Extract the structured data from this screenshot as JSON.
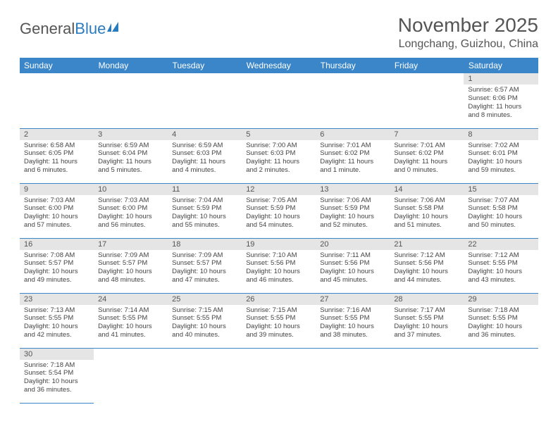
{
  "brand": {
    "part1": "General",
    "part2": "Blue"
  },
  "title": "November 2025",
  "location": "Longchang, Guizhou, China",
  "colors": {
    "header_bg": "#3a86c8",
    "header_text": "#ffffff",
    "daynum_bg": "#e5e5e5",
    "border": "#3a86c8",
    "text": "#444444",
    "title_text": "#555555"
  },
  "weekdays": [
    "Sunday",
    "Monday",
    "Tuesday",
    "Wednesday",
    "Thursday",
    "Friday",
    "Saturday"
  ],
  "leading_blanks": 6,
  "days": [
    {
      "n": 1,
      "sunrise": "6:57 AM",
      "sunset": "6:06 PM",
      "daylight": "11 hours and 8 minutes."
    },
    {
      "n": 2,
      "sunrise": "6:58 AM",
      "sunset": "6:05 PM",
      "daylight": "11 hours and 6 minutes."
    },
    {
      "n": 3,
      "sunrise": "6:59 AM",
      "sunset": "6:04 PM",
      "daylight": "11 hours and 5 minutes."
    },
    {
      "n": 4,
      "sunrise": "6:59 AM",
      "sunset": "6:03 PM",
      "daylight": "11 hours and 4 minutes."
    },
    {
      "n": 5,
      "sunrise": "7:00 AM",
      "sunset": "6:03 PM",
      "daylight": "11 hours and 2 minutes."
    },
    {
      "n": 6,
      "sunrise": "7:01 AM",
      "sunset": "6:02 PM",
      "daylight": "11 hours and 1 minute."
    },
    {
      "n": 7,
      "sunrise": "7:01 AM",
      "sunset": "6:02 PM",
      "daylight": "11 hours and 0 minutes."
    },
    {
      "n": 8,
      "sunrise": "7:02 AM",
      "sunset": "6:01 PM",
      "daylight": "10 hours and 59 minutes."
    },
    {
      "n": 9,
      "sunrise": "7:03 AM",
      "sunset": "6:00 PM",
      "daylight": "10 hours and 57 minutes."
    },
    {
      "n": 10,
      "sunrise": "7:03 AM",
      "sunset": "6:00 PM",
      "daylight": "10 hours and 56 minutes."
    },
    {
      "n": 11,
      "sunrise": "7:04 AM",
      "sunset": "5:59 PM",
      "daylight": "10 hours and 55 minutes."
    },
    {
      "n": 12,
      "sunrise": "7:05 AM",
      "sunset": "5:59 PM",
      "daylight": "10 hours and 54 minutes."
    },
    {
      "n": 13,
      "sunrise": "7:06 AM",
      "sunset": "5:59 PM",
      "daylight": "10 hours and 52 minutes."
    },
    {
      "n": 14,
      "sunrise": "7:06 AM",
      "sunset": "5:58 PM",
      "daylight": "10 hours and 51 minutes."
    },
    {
      "n": 15,
      "sunrise": "7:07 AM",
      "sunset": "5:58 PM",
      "daylight": "10 hours and 50 minutes."
    },
    {
      "n": 16,
      "sunrise": "7:08 AM",
      "sunset": "5:57 PM",
      "daylight": "10 hours and 49 minutes."
    },
    {
      "n": 17,
      "sunrise": "7:09 AM",
      "sunset": "5:57 PM",
      "daylight": "10 hours and 48 minutes."
    },
    {
      "n": 18,
      "sunrise": "7:09 AM",
      "sunset": "5:57 PM",
      "daylight": "10 hours and 47 minutes."
    },
    {
      "n": 19,
      "sunrise": "7:10 AM",
      "sunset": "5:56 PM",
      "daylight": "10 hours and 46 minutes."
    },
    {
      "n": 20,
      "sunrise": "7:11 AM",
      "sunset": "5:56 PM",
      "daylight": "10 hours and 45 minutes."
    },
    {
      "n": 21,
      "sunrise": "7:12 AM",
      "sunset": "5:56 PM",
      "daylight": "10 hours and 44 minutes."
    },
    {
      "n": 22,
      "sunrise": "7:12 AM",
      "sunset": "5:55 PM",
      "daylight": "10 hours and 43 minutes."
    },
    {
      "n": 23,
      "sunrise": "7:13 AM",
      "sunset": "5:55 PM",
      "daylight": "10 hours and 42 minutes."
    },
    {
      "n": 24,
      "sunrise": "7:14 AM",
      "sunset": "5:55 PM",
      "daylight": "10 hours and 41 minutes."
    },
    {
      "n": 25,
      "sunrise": "7:15 AM",
      "sunset": "5:55 PM",
      "daylight": "10 hours and 40 minutes."
    },
    {
      "n": 26,
      "sunrise": "7:15 AM",
      "sunset": "5:55 PM",
      "daylight": "10 hours and 39 minutes."
    },
    {
      "n": 27,
      "sunrise": "7:16 AM",
      "sunset": "5:55 PM",
      "daylight": "10 hours and 38 minutes."
    },
    {
      "n": 28,
      "sunrise": "7:17 AM",
      "sunset": "5:55 PM",
      "daylight": "10 hours and 37 minutes."
    },
    {
      "n": 29,
      "sunrise": "7:18 AM",
      "sunset": "5:55 PM",
      "daylight": "10 hours and 36 minutes."
    },
    {
      "n": 30,
      "sunrise": "7:18 AM",
      "sunset": "5:54 PM",
      "daylight": "10 hours and 36 minutes."
    }
  ],
  "labels": {
    "sunrise": "Sunrise:",
    "sunset": "Sunset:",
    "daylight": "Daylight:"
  }
}
